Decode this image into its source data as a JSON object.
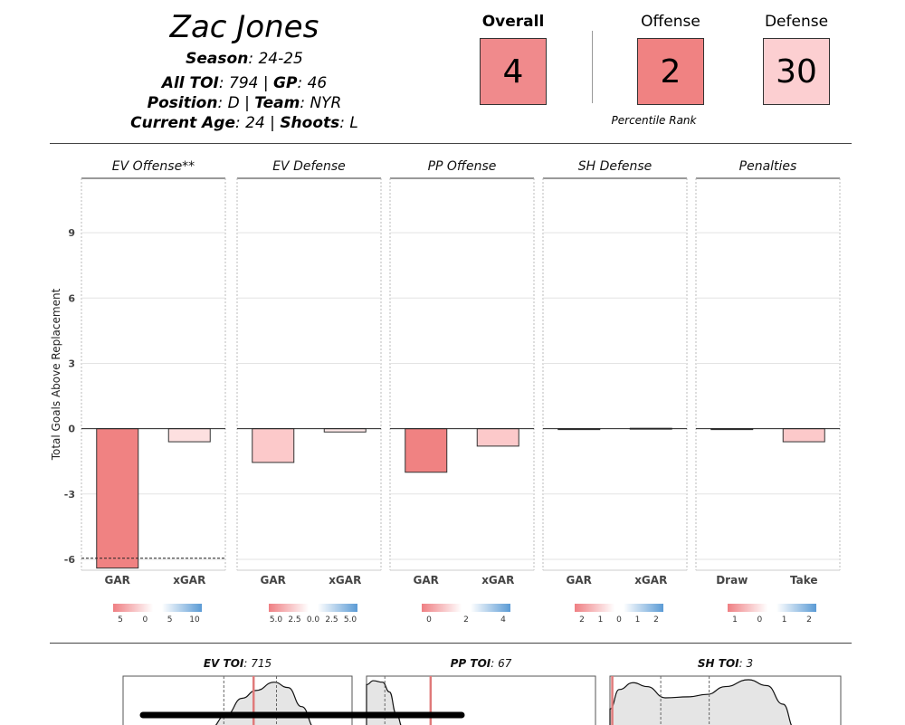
{
  "player": {
    "name": "Zac Jones",
    "season_label": "Season",
    "season_value": ": 24-25",
    "toi_label": "All TOI",
    "toi_value": ": 794 | ",
    "gp_label": "GP",
    "gp_value": ": 46",
    "position_label": "Position",
    "position_value": ": D | ",
    "team_label": "Team",
    "team_value": ": NYR",
    "age_label": "Current Age",
    "age_value": ": 24 | ",
    "shoots_label": "Shoots",
    "shoots_value": ": L"
  },
  "ranks": {
    "overall_label": "Overall",
    "overall_value": "4",
    "overall_color": "#f08a8c",
    "offense_label": "Offense",
    "offense_value": "2",
    "offense_color": "#f08282",
    "defense_label": "Defense",
    "defense_value": "30",
    "defense_color": "#fccfd1",
    "percentile_label": "Percentile Rank"
  },
  "chart_data": [
    {
      "type": "bar",
      "ylabel": "Total Goals Above Replacement",
      "ylim": [
        -6.5,
        11.5
      ],
      "yticks": [
        "-6",
        "-3",
        "0",
        "3",
        "6",
        "9"
      ],
      "ytick_values": [
        -6,
        -3,
        0,
        3,
        6,
        9
      ],
      "facets": [
        {
          "title": "EV Offense**",
          "categories": [
            "GAR",
            "xGAR"
          ],
          "values": [
            -6.4,
            -0.6
          ],
          "colors": [
            "#f08282",
            "#fde0e0"
          ],
          "ref_line": -5.95,
          "legend_ticks": [
            "5",
            "0",
            "5",
            "10"
          ]
        },
        {
          "title": "EV Defense",
          "categories": [
            "GAR",
            "xGAR"
          ],
          "values": [
            -1.55,
            -0.15
          ],
          "colors": [
            "#fcc9ca",
            "#fde8e8"
          ],
          "legend_ticks": [
            "5.0",
            "2.5",
            "0.0",
            "2.5",
            "5.0"
          ]
        },
        {
          "title": "PP Offense",
          "categories": [
            "GAR",
            "xGAR"
          ],
          "values": [
            -2.0,
            -0.8
          ],
          "colors": [
            "#f08282",
            "#fcc9ca"
          ],
          "legend_ticks": [
            "0",
            "2",
            "4"
          ]
        },
        {
          "title": "SH Defense",
          "categories": [
            "GAR",
            "xGAR"
          ],
          "values": [
            -0.02,
            0.02
          ],
          "colors": [
            "#fdeaea",
            "#eef4fb"
          ],
          "legend_ticks": [
            "2",
            "1",
            "0",
            "1",
            "2"
          ]
        },
        {
          "title": "Penalties",
          "categories": [
            "Draw",
            "Take"
          ],
          "values": [
            -0.02,
            -0.6
          ],
          "colors": [
            "#fdeaea",
            "#fcc9ca"
          ],
          "legend_ticks": [
            "1",
            "0",
            "1",
            "2"
          ]
        }
      ]
    },
    {
      "type": "area",
      "panels": [
        {
          "title_label": "EV TOI",
          "title_value": ": 715"
        },
        {
          "title_label": "PP TOI",
          "title_value": ": 67"
        },
        {
          "title_label": "SH TOI",
          "title_value": ": 3"
        }
      ],
      "fill_color": "#e5e5e5",
      "marker_color": "#e07a7a"
    }
  ]
}
